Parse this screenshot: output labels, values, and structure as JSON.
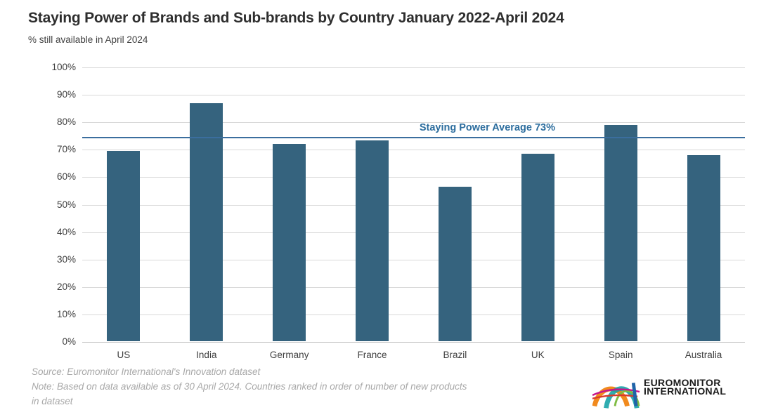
{
  "title": "Staying Power of Brands and Sub-brands by Country January 2022-April 2024",
  "subtitle": "% still available in April 2024",
  "chart_data": {
    "type": "bar",
    "categories": [
      "US",
      "India",
      "Germany",
      "France",
      "Brazil",
      "UK",
      "Spain",
      "Australia"
    ],
    "values": [
      69.5,
      87,
      72,
      73.5,
      56.5,
      68.5,
      79,
      68
    ],
    "title": "Staying Power of Brands and Sub-brands by Country January 2022-April 2024",
    "subtitle": "% still available in April 2024",
    "xlabel": "",
    "ylabel": "",
    "ylim": [
      0,
      100
    ],
    "ytick_step": 10,
    "ytick_suffix": "%",
    "grid": true,
    "legend": "none",
    "average_line": {
      "label": "Staying Power Average 73%",
      "value": 73,
      "rendered_at_percent": 74.6
    }
  },
  "colors": {
    "bar": "#35637E",
    "average_line": "#3B6E9E",
    "average_label": "#2C6D9E",
    "gridline": "#d9d9d9",
    "axis_line": "#bfbfbf",
    "tick_text": "#3f3f3f",
    "title_text": "#2e2e2e",
    "note_text": "#a8a8a8"
  },
  "footer": {
    "source_lines": [
      "Source: Euromonitor International's Innovation dataset",
      "Note: Based on data available as of 30 April 2024. Countries ranked in order of number of new products",
      "in dataset"
    ]
  },
  "logo": {
    "line1": "EUROMONITOR",
    "line2": "INTERNATIONAL"
  }
}
